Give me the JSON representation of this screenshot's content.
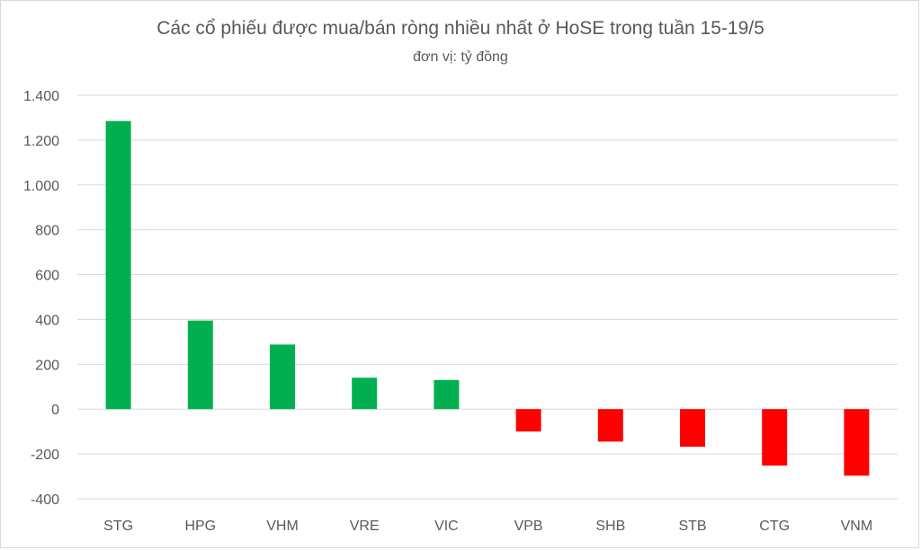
{
  "chart_data": {
    "type": "bar",
    "title": "Các cổ phiếu được mua/bán ròng nhiều nhất ở HoSE trong tuần 15-19/5",
    "subtitle": "đơn vị: tỷ đồng",
    "categories": [
      "STG",
      "HPG",
      "VHM",
      "VRE",
      "VIC",
      "VPB",
      "SHB",
      "STB",
      "CTG",
      "VNM"
    ],
    "values": [
      1285,
      395,
      288,
      140,
      130,
      -100,
      -145,
      -168,
      -252,
      -297
    ],
    "ylim": [
      -400,
      1400
    ],
    "yticks": [
      1400,
      1200,
      1000,
      800,
      600,
      400,
      200,
      0,
      -200,
      -400
    ],
    "ytick_labels": [
      "1.400",
      "1.200",
      "1.000",
      "800",
      "600",
      "400",
      "200",
      "0",
      "-200",
      "-400"
    ],
    "grid": true,
    "legend": "none",
    "colors": {
      "positive": "#00b050",
      "negative": "#ff0000",
      "grid": "#d9d9d9",
      "text": "#595959"
    }
  }
}
